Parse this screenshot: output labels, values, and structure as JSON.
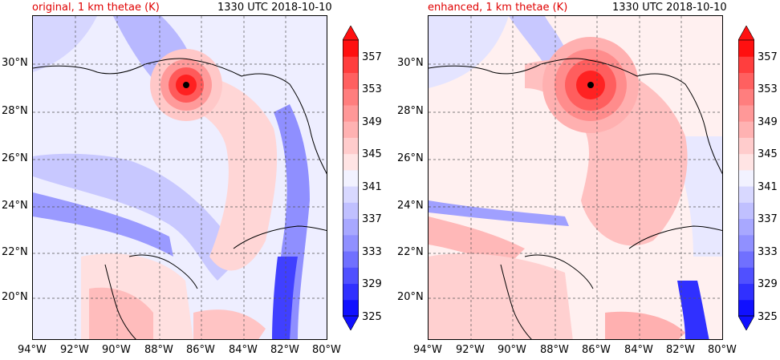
{
  "panels": [
    {
      "title_left": "original, 1 km thetae (K)",
      "title_right": "1330 UTC 2018-10-10",
      "title_left_color": "#e00000"
    },
    {
      "title_left": "enhanced, 1 km thetae (K)",
      "title_right": "1330 UTC 2018-10-10",
      "title_left_color": "#e00000"
    }
  ],
  "lat_ticks": [
    "30°N",
    "28°N",
    "26°N",
    "24°N",
    "22°N",
    "20°N"
  ],
  "lon_ticks": [
    "94°W",
    "92°W",
    "90°W",
    "88°W",
    "86°W",
    "84°W",
    "82°W",
    "80°W"
  ],
  "colorbar": {
    "labels": [
      "357",
      "353",
      "349",
      "345",
      "341",
      "337",
      "333",
      "329",
      "325"
    ],
    "levels": [
      325,
      327,
      329,
      331,
      333,
      335,
      337,
      339,
      341,
      343,
      345,
      347,
      349,
      351,
      353,
      355,
      357
    ],
    "colors_low_to_high": [
      "#1010ff",
      "#3030ff",
      "#5050ff",
      "#7070ff",
      "#9090ff",
      "#a8a8ff",
      "#c0c0ff",
      "#d8d8ff",
      "#f2f2ff",
      "#ffe4e4",
      "#ffcccc",
      "#ffb2b2",
      "#ff9898",
      "#ff7e7e",
      "#ff6060",
      "#ff3e3e",
      "#ff1010"
    ],
    "extend": "both"
  },
  "storm_marker_color": "#000000"
}
